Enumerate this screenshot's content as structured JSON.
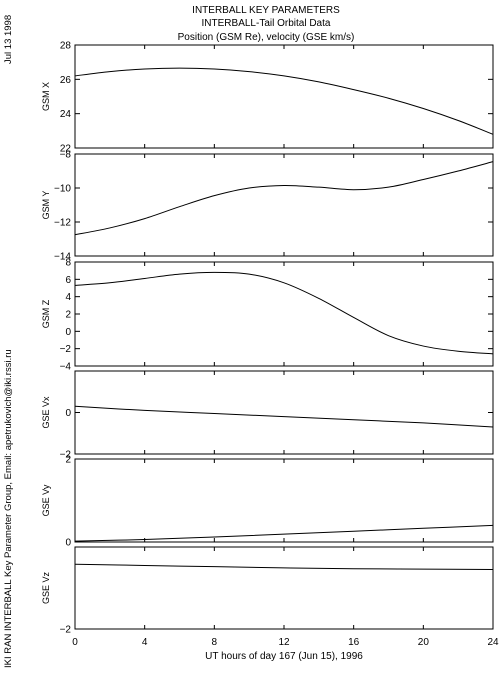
{
  "header": {
    "title_lines": [
      "INTERBALL KEY PARAMETERS",
      "INTERBALL-Tail Orbital Data",
      "Position (GSM Re), velocity (GSE km/s)"
    ]
  },
  "side_text": {
    "date": "Jul 13 1998",
    "credit": "IKI RAN INTERBALL Key Parameter Group, Email: apetrukovich@iki.rssi.ru"
  },
  "chart_data": [
    {
      "type": "line",
      "ylabel": "GSM X",
      "ylim": [
        22,
        28
      ],
      "yticks": [
        22,
        24,
        26,
        28
      ],
      "x": [
        0,
        2,
        4,
        6,
        8,
        10,
        12,
        14,
        16,
        18,
        20,
        22,
        24
      ],
      "values": [
        26.2,
        26.45,
        26.6,
        26.65,
        26.6,
        26.45,
        26.2,
        25.85,
        25.4,
        24.9,
        24.3,
        23.6,
        22.8
      ]
    },
    {
      "type": "line",
      "ylabel": "GSM Y",
      "ylim": [
        -14,
        -8
      ],
      "yticks": [
        -14,
        -12,
        -10,
        -8
      ],
      "x": [
        0,
        2,
        4,
        6,
        8,
        10,
        12,
        14,
        16,
        18,
        20,
        22,
        24
      ],
      "values": [
        -12.75,
        -12.35,
        -11.8,
        -11.1,
        -10.45,
        -10.0,
        -9.85,
        -9.95,
        -10.1,
        -9.95,
        -9.5,
        -9.0,
        -8.45
      ]
    },
    {
      "type": "line",
      "ylabel": "GSM Z",
      "ylim": [
        -4,
        8
      ],
      "yticks": [
        -4,
        -2,
        0,
        2,
        4,
        6,
        8
      ],
      "x": [
        0,
        2,
        4,
        6,
        8,
        10,
        12,
        14,
        16,
        18,
        20,
        22,
        24
      ],
      "values": [
        5.3,
        5.6,
        6.1,
        6.6,
        6.8,
        6.6,
        5.6,
        3.8,
        1.6,
        -0.5,
        -1.7,
        -2.3,
        -2.6
      ]
    },
    {
      "type": "line",
      "ylabel": "GSE Vx",
      "ylim": [
        -2,
        2
      ],
      "yticks": [
        -2,
        0
      ],
      "x": [
        0,
        4,
        8,
        12,
        16,
        20,
        24
      ],
      "values": [
        0.3,
        0.1,
        -0.05,
        -0.2,
        -0.35,
        -0.5,
        -0.7
      ]
    },
    {
      "type": "line",
      "ylabel": "GSE Vy",
      "ylim": [
        0,
        2
      ],
      "yticks": [
        0,
        2
      ],
      "x": [
        0,
        4,
        8,
        12,
        16,
        20,
        24
      ],
      "values": [
        0.02,
        0.06,
        0.12,
        0.19,
        0.26,
        0.33,
        0.4
      ]
    },
    {
      "type": "line",
      "ylabel": "GSE Vz",
      "ylim": [
        -2,
        0
      ],
      "yticks": [
        -2
      ],
      "x": [
        0,
        4,
        8,
        12,
        16,
        20,
        24
      ],
      "values": [
        -0.42,
        -0.45,
        -0.48,
        -0.51,
        -0.53,
        -0.54,
        -0.55
      ]
    }
  ],
  "x_axis": {
    "xlim": [
      0,
      24
    ],
    "ticks": [
      0,
      4,
      8,
      12,
      16,
      20,
      24
    ],
    "xlabel": "UT hours of day 167 (Jun 15), 1996"
  }
}
